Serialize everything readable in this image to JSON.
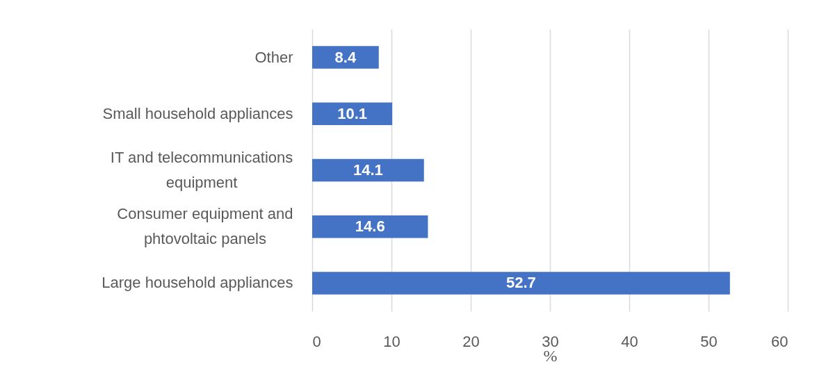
{
  "chart_data": {
    "type": "bar",
    "orientation": "horizontal",
    "categories": [
      "Other",
      "Small household appliances",
      "IT and telecommunications equipment",
      "Consumer equipment and phtovoltaic panels",
      "Large household appliances"
    ],
    "values": [
      8.4,
      10.1,
      14.1,
      14.6,
      52.7
    ],
    "color": "#4472c4",
    "xlim": [
      0,
      60
    ],
    "xticks": [
      0,
      10,
      20,
      30,
      40,
      50,
      60
    ],
    "xlabel": "%",
    "grid": "x",
    "data_labels": true
  }
}
